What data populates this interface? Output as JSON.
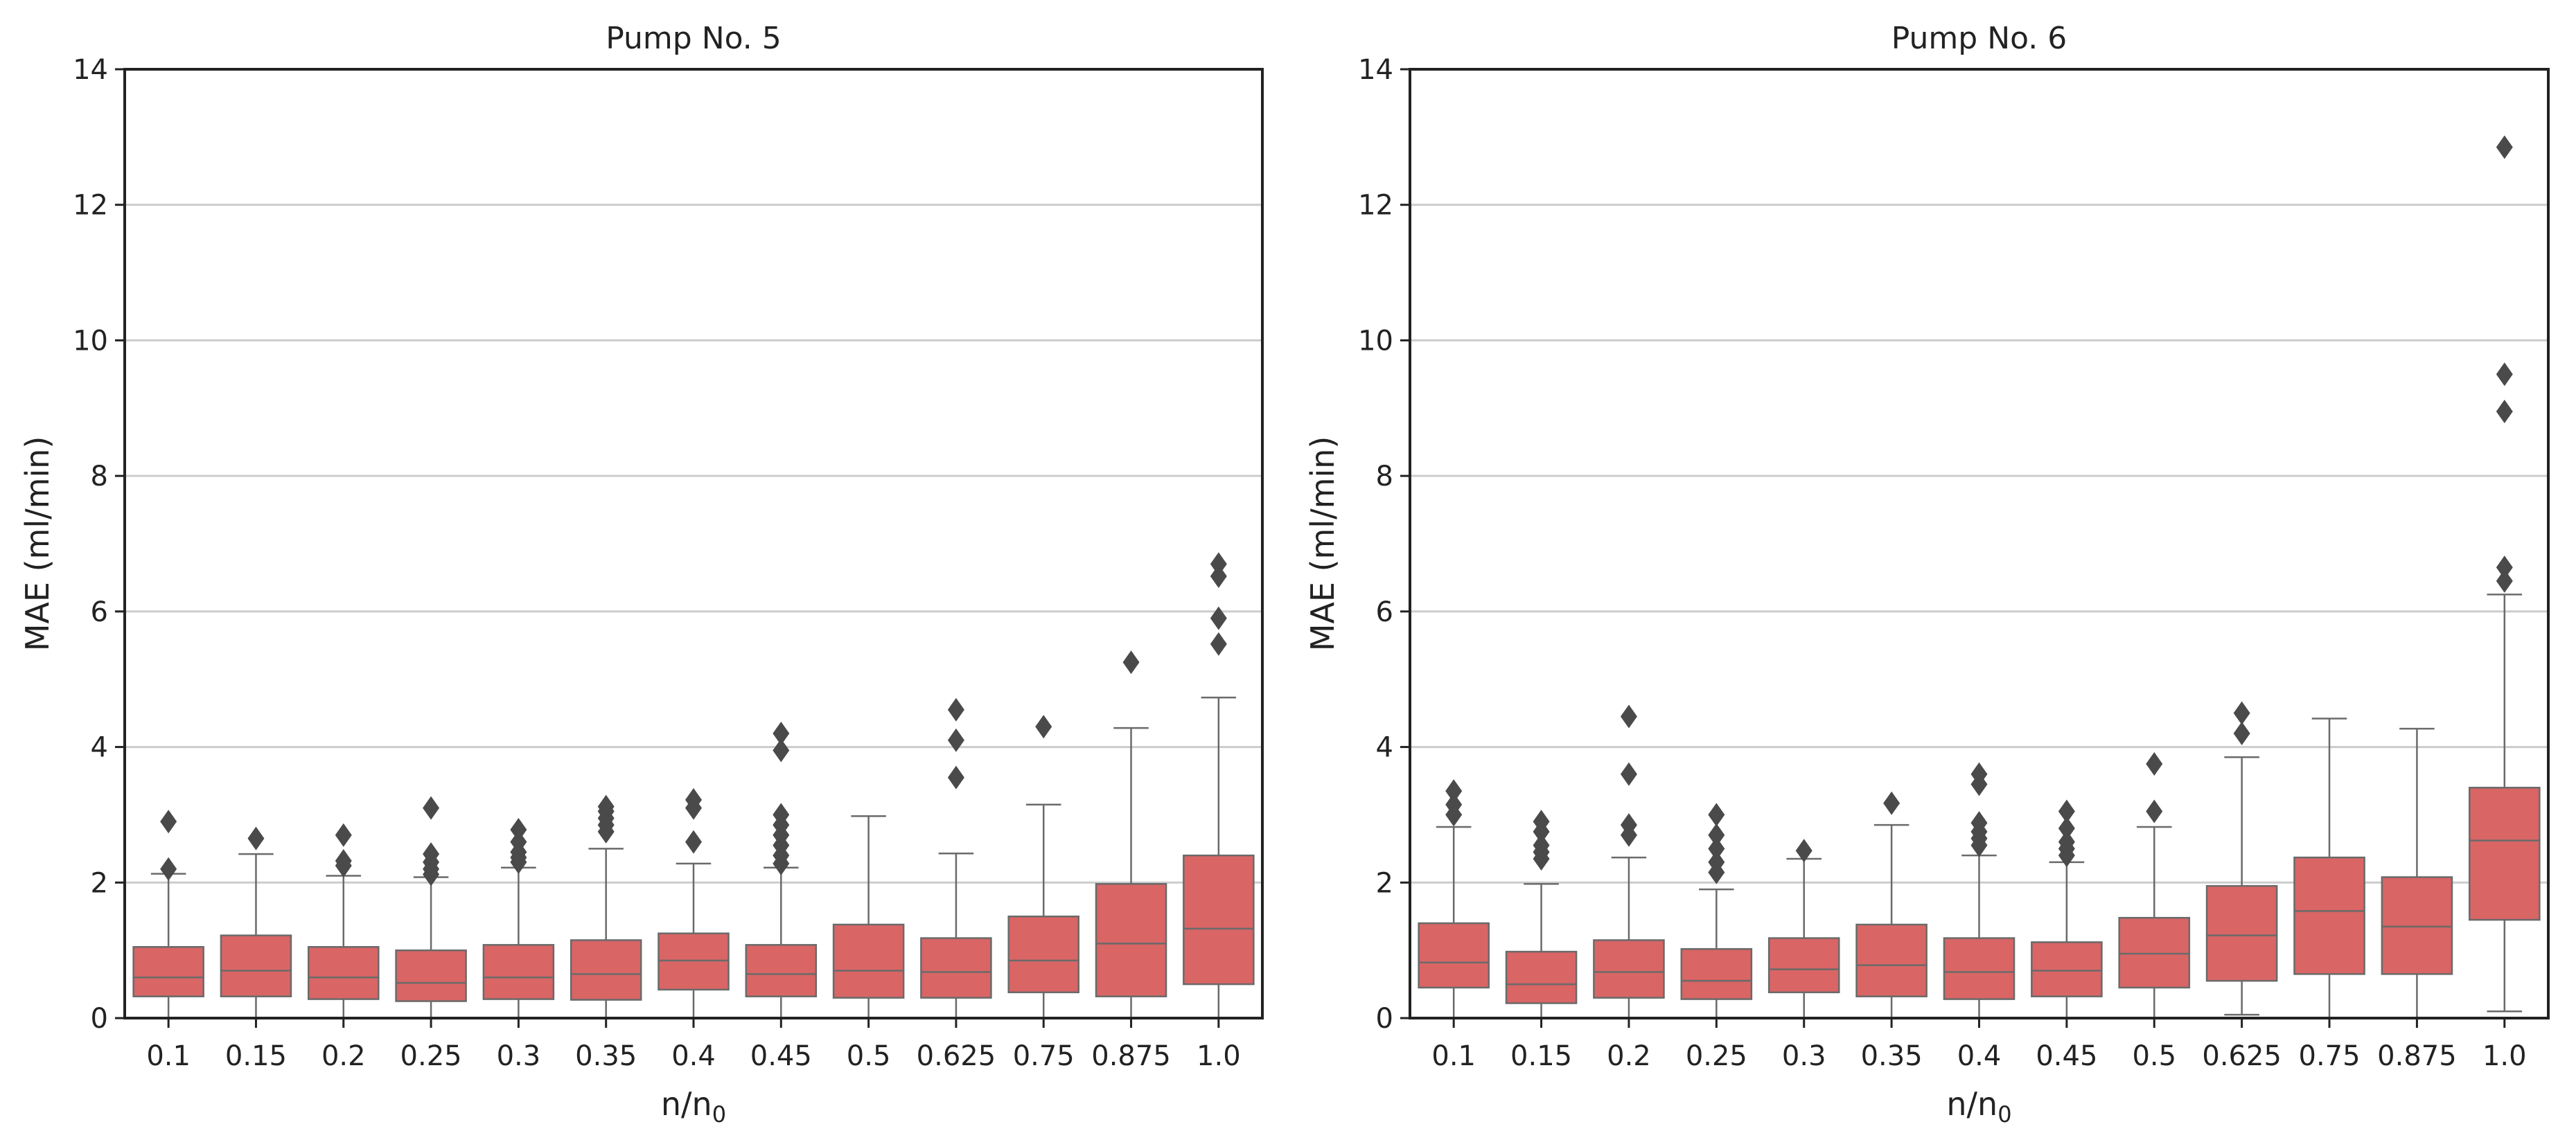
{
  "chart_data": [
    {
      "type": "boxplot",
      "title": "Pump No. 5",
      "xlabel": "n/n",
      "xlabel_sub": "0",
      "ylabel": "MAE (ml/min)",
      "ylim": [
        0,
        14
      ],
      "yticks": [
        "0",
        "2",
        "4",
        "6",
        "8",
        "10",
        "12",
        "14"
      ],
      "grid": "horizontal",
      "color": "#d96565",
      "categories": [
        "0.1",
        "0.15",
        "0.2",
        "0.25",
        "0.3",
        "0.35",
        "0.4",
        "0.45",
        "0.5",
        "0.625",
        "0.75",
        "0.875",
        "1.0"
      ],
      "boxes": [
        {
          "q1": 0.32,
          "median": 0.6,
          "q3": 1.05,
          "whislo": 0.0,
          "whishi": 2.13,
          "fliers": [
            2.2,
            2.9
          ]
        },
        {
          "q1": 0.32,
          "median": 0.7,
          "q3": 1.22,
          "whislo": 0.0,
          "whishi": 2.42,
          "fliers": [
            2.65
          ]
        },
        {
          "q1": 0.28,
          "median": 0.6,
          "q3": 1.05,
          "whislo": 0.0,
          "whishi": 2.1,
          "fliers": [
            2.25,
            2.32,
            2.7
          ]
        },
        {
          "q1": 0.25,
          "median": 0.52,
          "q3": 1.0,
          "whislo": 0.0,
          "whishi": 2.08,
          "fliers": [
            2.12,
            2.2,
            2.3,
            2.42,
            3.1
          ]
        },
        {
          "q1": 0.28,
          "median": 0.6,
          "q3": 1.08,
          "whislo": 0.0,
          "whishi": 2.22,
          "fliers": [
            2.3,
            2.37,
            2.45,
            2.6,
            2.78
          ]
        },
        {
          "q1": 0.27,
          "median": 0.65,
          "q3": 1.15,
          "whislo": 0.0,
          "whishi": 2.5,
          "fliers": [
            2.75,
            2.85,
            2.95,
            3.05,
            3.12
          ]
        },
        {
          "q1": 0.42,
          "median": 0.85,
          "q3": 1.25,
          "whislo": 0.0,
          "whishi": 2.28,
          "fliers": [
            2.6,
            3.1,
            3.22
          ]
        },
        {
          "q1": 0.32,
          "median": 0.65,
          "q3": 1.08,
          "whislo": 0.0,
          "whishi": 2.22,
          "fliers": [
            2.28,
            2.4,
            2.55,
            2.7,
            2.85,
            3.0,
            3.95,
            4.2
          ]
        },
        {
          "q1": 0.3,
          "median": 0.7,
          "q3": 1.38,
          "whislo": 0.0,
          "whishi": 2.98,
          "fliers": []
        },
        {
          "q1": 0.3,
          "median": 0.68,
          "q3": 1.18,
          "whislo": 0.0,
          "whishi": 2.43,
          "fliers": [
            3.55,
            4.1,
            4.55
          ]
        },
        {
          "q1": 0.38,
          "median": 0.85,
          "q3": 1.5,
          "whislo": 0.0,
          "whishi": 3.15,
          "fliers": [
            4.3
          ]
        },
        {
          "q1": 0.32,
          "median": 1.1,
          "q3": 1.98,
          "whislo": 0.0,
          "whishi": 4.28,
          "fliers": [
            5.25
          ]
        },
        {
          "q1": 0.5,
          "median": 1.32,
          "q3": 2.4,
          "whislo": 0.0,
          "whishi": 4.73,
          "fliers": [
            5.52,
            5.9,
            6.52,
            6.7
          ]
        }
      ]
    },
    {
      "type": "boxplot",
      "title": "Pump No. 6",
      "xlabel": "n/n",
      "xlabel_sub": "0",
      "ylabel": "MAE (ml/min)",
      "ylim": [
        0,
        14
      ],
      "yticks": [
        "0",
        "2",
        "4",
        "6",
        "8",
        "10",
        "12",
        "14"
      ],
      "grid": "horizontal",
      "color": "#d96565",
      "categories": [
        "0.1",
        "0.15",
        "0.2",
        "0.25",
        "0.3",
        "0.35",
        "0.4",
        "0.45",
        "0.5",
        "0.625",
        "0.75",
        "0.875",
        "1.0"
      ],
      "boxes": [
        {
          "q1": 0.45,
          "median": 0.82,
          "q3": 1.4,
          "whislo": 0.0,
          "whishi": 2.82,
          "fliers": [
            3.0,
            3.15,
            3.35
          ]
        },
        {
          "q1": 0.22,
          "median": 0.5,
          "q3": 0.98,
          "whislo": 0.0,
          "whishi": 1.98,
          "fliers": [
            2.35,
            2.45,
            2.55,
            2.75,
            2.9
          ]
        },
        {
          "q1": 0.3,
          "median": 0.68,
          "q3": 1.15,
          "whislo": 0.0,
          "whishi": 2.37,
          "fliers": [
            2.7,
            2.85,
            3.6,
            4.45
          ]
        },
        {
          "q1": 0.28,
          "median": 0.55,
          "q3": 1.02,
          "whislo": 0.0,
          "whishi": 1.9,
          "fliers": [
            2.15,
            2.3,
            2.5,
            2.7,
            3.0
          ]
        },
        {
          "q1": 0.38,
          "median": 0.72,
          "q3": 1.18,
          "whislo": 0.0,
          "whishi": 2.35,
          "fliers": [
            2.47
          ]
        },
        {
          "q1": 0.32,
          "median": 0.78,
          "q3": 1.38,
          "whislo": 0.0,
          "whishi": 2.85,
          "fliers": [
            3.17
          ]
        },
        {
          "q1": 0.28,
          "median": 0.68,
          "q3": 1.18,
          "whislo": 0.0,
          "whishi": 2.4,
          "fliers": [
            2.55,
            2.65,
            2.75,
            2.88,
            3.45,
            3.6
          ]
        },
        {
          "q1": 0.32,
          "median": 0.7,
          "q3": 1.12,
          "whislo": 0.0,
          "whishi": 2.3,
          "fliers": [
            2.4,
            2.5,
            2.6,
            2.8,
            3.05
          ]
        },
        {
          "q1": 0.45,
          "median": 0.95,
          "q3": 1.48,
          "whislo": 0.0,
          "whishi": 2.82,
          "fliers": [
            3.05,
            3.75
          ]
        },
        {
          "q1": 0.55,
          "median": 1.22,
          "q3": 1.95,
          "whislo": 0.05,
          "whishi": 3.85,
          "fliers": [
            4.2,
            4.5
          ]
        },
        {
          "q1": 0.65,
          "median": 1.58,
          "q3": 2.37,
          "whislo": 0.0,
          "whishi": 4.42,
          "fliers": []
        },
        {
          "q1": 0.65,
          "median": 1.35,
          "q3": 2.08,
          "whislo": 0.0,
          "whishi": 4.27,
          "fliers": []
        },
        {
          "q1": 1.45,
          "median": 2.62,
          "q3": 3.4,
          "whislo": 0.1,
          "whishi": 6.25,
          "fliers": [
            6.45,
            6.65,
            8.95,
            9.5,
            12.85
          ]
        }
      ]
    }
  ]
}
